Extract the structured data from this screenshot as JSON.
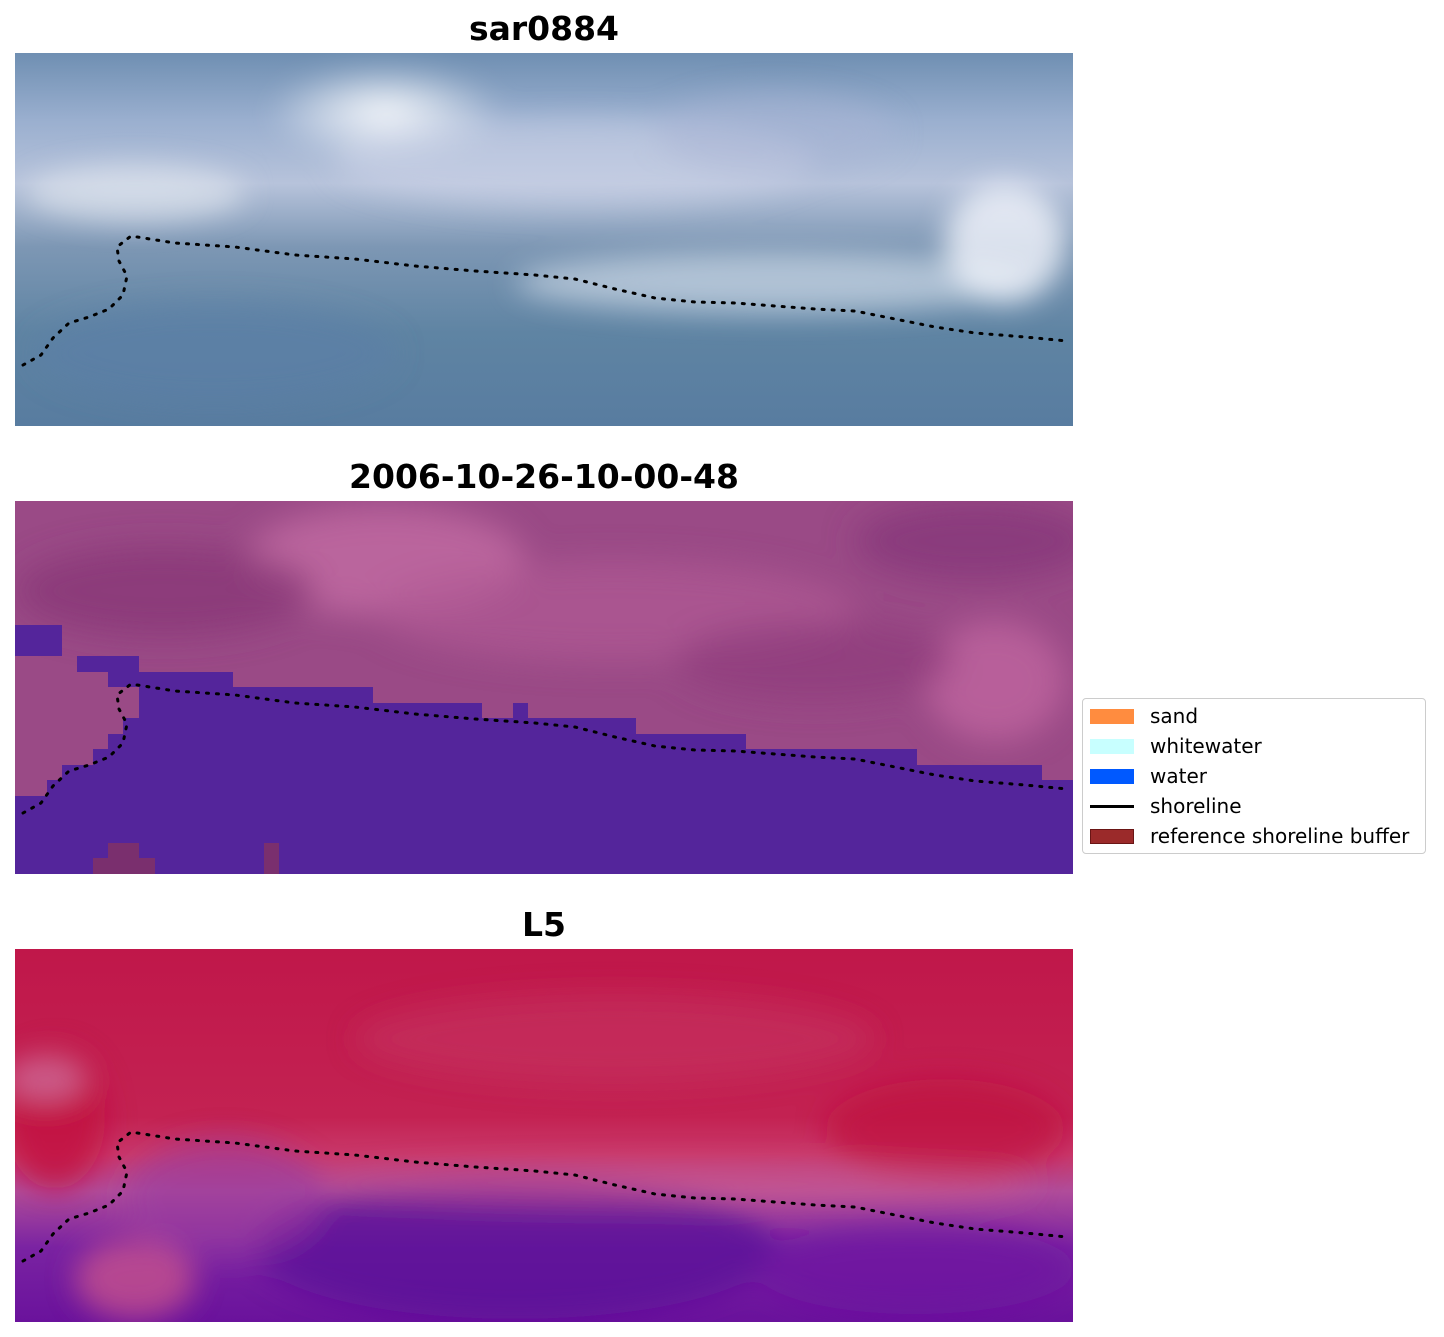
{
  "panels": [
    {
      "title": "sar0884",
      "image": "rgb-satellite-image"
    },
    {
      "title": "2006-10-26-10-00-48",
      "image": "classified-image-overlay"
    },
    {
      "title": "L5",
      "image": "false-color-image"
    }
  ],
  "legend": {
    "items": [
      {
        "label": "sand",
        "color": "#ff8c3f",
        "symbol": "patch"
      },
      {
        "label": "whitewater",
        "color": "#c8ffff",
        "symbol": "patch"
      },
      {
        "label": "water",
        "color": "#0059ff",
        "symbol": "patch"
      },
      {
        "label": "shoreline",
        "color": "#000000",
        "symbol": "line"
      },
      {
        "label": "reference shoreline buffer",
        "color": "#9b2a2a",
        "symbol": "patch"
      }
    ]
  }
}
